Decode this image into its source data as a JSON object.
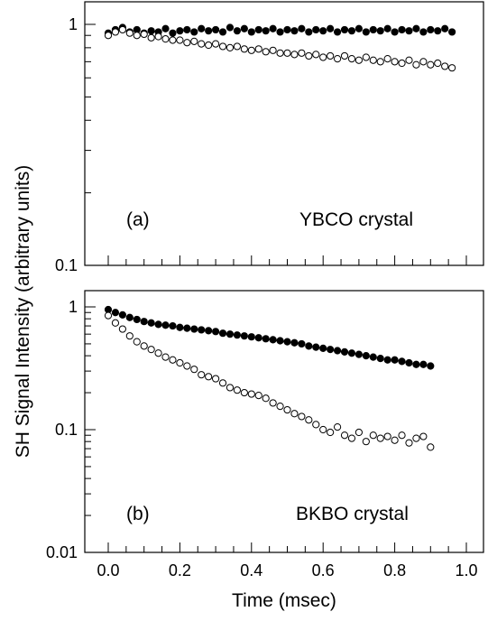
{
  "chart_data": [
    {
      "panel": "a",
      "type": "scatter",
      "panel_label": "(a)",
      "annotation": "YBCO crystal",
      "ylabel": "SH Signal Intensity (arbitrary units)",
      "xlabel": "Time (msec)",
      "y_scale": "log",
      "xlim": [
        -0.05,
        1.05
      ],
      "ylim": [
        0.1,
        1.1
      ],
      "y_tick_labels": [
        {
          "value": 1,
          "label": "1"
        },
        {
          "value": 0.1,
          "label": "0.1"
        }
      ],
      "x_tick_labels": [],
      "grid": false,
      "series": [
        {
          "marker": "filled-circle",
          "fill": "#000000",
          "x": [
            0.0,
            0.02,
            0.04,
            0.06,
            0.08,
            0.1,
            0.12,
            0.14,
            0.16,
            0.18,
            0.2,
            0.22,
            0.24,
            0.26,
            0.28,
            0.3,
            0.32,
            0.34,
            0.36,
            0.38,
            0.4,
            0.42,
            0.44,
            0.46,
            0.48,
            0.5,
            0.52,
            0.54,
            0.56,
            0.58,
            0.6,
            0.62,
            0.64,
            0.66,
            0.68,
            0.7,
            0.72,
            0.74,
            0.76,
            0.78,
            0.8,
            0.82,
            0.84,
            0.86,
            0.88,
            0.9,
            0.92,
            0.94,
            0.96
          ],
          "y": [
            0.92,
            0.95,
            0.97,
            0.93,
            0.95,
            0.92,
            0.94,
            0.93,
            0.96,
            0.92,
            0.94,
            0.95,
            0.93,
            0.96,
            0.94,
            0.95,
            0.93,
            0.97,
            0.94,
            0.96,
            0.93,
            0.95,
            0.94,
            0.96,
            0.93,
            0.95,
            0.94,
            0.96,
            0.93,
            0.95,
            0.94,
            0.96,
            0.93,
            0.95,
            0.94,
            0.96,
            0.93,
            0.95,
            0.94,
            0.96,
            0.93,
            0.95,
            0.94,
            0.96,
            0.93,
            0.95,
            0.94,
            0.96,
            0.93
          ]
        },
        {
          "marker": "open-circle",
          "fill": "#ffffff",
          "x": [
            0.0,
            0.02,
            0.04,
            0.06,
            0.08,
            0.1,
            0.12,
            0.14,
            0.16,
            0.18,
            0.2,
            0.22,
            0.24,
            0.26,
            0.28,
            0.3,
            0.32,
            0.34,
            0.36,
            0.38,
            0.4,
            0.42,
            0.44,
            0.46,
            0.48,
            0.5,
            0.52,
            0.54,
            0.56,
            0.58,
            0.6,
            0.62,
            0.64,
            0.66,
            0.68,
            0.7,
            0.72,
            0.74,
            0.76,
            0.78,
            0.8,
            0.82,
            0.84,
            0.86,
            0.88,
            0.9,
            0.92,
            0.94,
            0.96
          ],
          "y": [
            0.9,
            0.93,
            0.95,
            0.92,
            0.9,
            0.91,
            0.88,
            0.89,
            0.87,
            0.86,
            0.86,
            0.84,
            0.85,
            0.83,
            0.82,
            0.83,
            0.81,
            0.8,
            0.81,
            0.79,
            0.78,
            0.79,
            0.77,
            0.78,
            0.76,
            0.76,
            0.75,
            0.76,
            0.74,
            0.75,
            0.73,
            0.74,
            0.72,
            0.74,
            0.72,
            0.71,
            0.73,
            0.71,
            0.7,
            0.72,
            0.7,
            0.69,
            0.71,
            0.68,
            0.7,
            0.68,
            0.69,
            0.67,
            0.66
          ]
        }
      ]
    },
    {
      "panel": "b",
      "type": "scatter",
      "panel_label": "(b)",
      "annotation": "BKBO crystal",
      "ylabel": "SH Signal Intensity (arbitrary units)",
      "xlabel": "Time (msec)",
      "y_scale": "log",
      "xlim": [
        -0.05,
        1.05
      ],
      "ylim": [
        0.01,
        1.1
      ],
      "y_tick_labels": [
        {
          "value": 1,
          "label": "1"
        },
        {
          "value": 0.1,
          "label": "0.1"
        },
        {
          "value": 0.01,
          "label": "0.01"
        }
      ],
      "x_tick_labels": [
        {
          "value": 0.0,
          "label": "0.0"
        },
        {
          "value": 0.2,
          "label": "0.2"
        },
        {
          "value": 0.4,
          "label": "0.4"
        },
        {
          "value": 0.6,
          "label": "0.6"
        },
        {
          "value": 0.8,
          "label": "0.8"
        },
        {
          "value": 1.0,
          "label": "1.0"
        }
      ],
      "grid": false,
      "series": [
        {
          "marker": "filled-circle",
          "fill": "#000000",
          "x": [
            0.0,
            0.02,
            0.04,
            0.06,
            0.08,
            0.1,
            0.12,
            0.14,
            0.16,
            0.18,
            0.2,
            0.22,
            0.24,
            0.26,
            0.28,
            0.3,
            0.32,
            0.34,
            0.36,
            0.38,
            0.4,
            0.42,
            0.44,
            0.46,
            0.48,
            0.5,
            0.52,
            0.54,
            0.56,
            0.58,
            0.6,
            0.62,
            0.64,
            0.66,
            0.68,
            0.7,
            0.72,
            0.74,
            0.76,
            0.78,
            0.8,
            0.82,
            0.84,
            0.86,
            0.88,
            0.9
          ],
          "y": [
            0.95,
            0.9,
            0.86,
            0.82,
            0.79,
            0.76,
            0.74,
            0.72,
            0.71,
            0.7,
            0.68,
            0.67,
            0.66,
            0.65,
            0.64,
            0.63,
            0.61,
            0.6,
            0.59,
            0.58,
            0.57,
            0.56,
            0.55,
            0.54,
            0.53,
            0.52,
            0.51,
            0.5,
            0.48,
            0.47,
            0.46,
            0.45,
            0.44,
            0.43,
            0.42,
            0.41,
            0.4,
            0.39,
            0.38,
            0.37,
            0.37,
            0.36,
            0.35,
            0.34,
            0.34,
            0.33
          ]
        },
        {
          "marker": "open-circle",
          "fill": "#ffffff",
          "x": [
            0.0,
            0.02,
            0.04,
            0.06,
            0.08,
            0.1,
            0.12,
            0.14,
            0.16,
            0.18,
            0.2,
            0.22,
            0.24,
            0.26,
            0.28,
            0.3,
            0.32,
            0.34,
            0.36,
            0.38,
            0.4,
            0.42,
            0.44,
            0.46,
            0.48,
            0.5,
            0.52,
            0.54,
            0.56,
            0.58,
            0.6,
            0.62,
            0.64,
            0.66,
            0.68,
            0.7,
            0.72,
            0.74,
            0.76,
            0.78,
            0.8,
            0.82,
            0.84,
            0.86,
            0.88,
            0.9
          ],
          "y": [
            0.85,
            0.74,
            0.66,
            0.58,
            0.52,
            0.48,
            0.45,
            0.42,
            0.39,
            0.37,
            0.35,
            0.33,
            0.31,
            0.28,
            0.27,
            0.26,
            0.24,
            0.22,
            0.21,
            0.2,
            0.195,
            0.19,
            0.18,
            0.165,
            0.155,
            0.145,
            0.135,
            0.128,
            0.12,
            0.11,
            0.1,
            0.095,
            0.105,
            0.09,
            0.085,
            0.095,
            0.08,
            0.09,
            0.085,
            0.088,
            0.082,
            0.09,
            0.078,
            0.085,
            0.088,
            0.072
          ]
        }
      ]
    }
  ]
}
